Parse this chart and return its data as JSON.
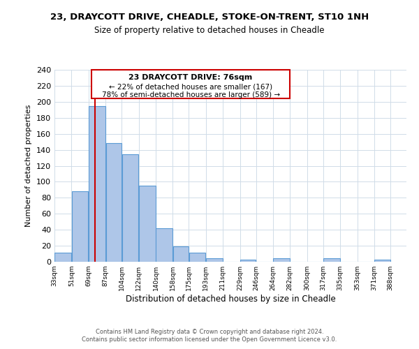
{
  "title": "23, DRAYCOTT DRIVE, CHEADLE, STOKE-ON-TRENT, ST10 1NH",
  "subtitle": "Size of property relative to detached houses in Cheadle",
  "xlabel": "Distribution of detached houses by size in Cheadle",
  "ylabel": "Number of detached properties",
  "bar_left_edges": [
    33,
    51,
    69,
    87,
    104,
    122,
    140,
    158,
    175,
    193,
    211,
    229,
    246,
    264,
    282,
    300,
    317,
    335,
    353,
    371
  ],
  "bar_heights": [
    11,
    88,
    195,
    148,
    134,
    95,
    42,
    19,
    11,
    4,
    0,
    3,
    0,
    4,
    0,
    0,
    4,
    0,
    0,
    3
  ],
  "bar_widths": [
    18,
    18,
    18,
    17,
    18,
    18,
    18,
    17,
    18,
    18,
    18,
    17,
    18,
    18,
    18,
    17,
    18,
    18,
    18,
    17
  ],
  "bar_color": "#aec6e8",
  "bar_edge_color": "#5b9bd5",
  "property_line_x": 76,
  "property_line_color": "#cc0000",
  "annotation_title": "23 DRAYCOTT DRIVE: 76sqm",
  "annotation_line1": "← 22% of detached houses are smaller (167)",
  "annotation_line2": "78% of semi-detached houses are larger (589) →",
  "annotation_box_color": "#ffffff",
  "annotation_box_edge_color": "#cc0000",
  "tick_labels": [
    "33sqm",
    "51sqm",
    "69sqm",
    "87sqm",
    "104sqm",
    "122sqm",
    "140sqm",
    "158sqm",
    "175sqm",
    "193sqm",
    "211sqm",
    "229sqm",
    "246sqm",
    "264sqm",
    "282sqm",
    "300sqm",
    "317sqm",
    "335sqm",
    "353sqm",
    "371sqm",
    "388sqm"
  ],
  "ylim": [
    0,
    240
  ],
  "yticks": [
    0,
    20,
    40,
    60,
    80,
    100,
    120,
    140,
    160,
    180,
    200,
    220,
    240
  ],
  "footer1": "Contains HM Land Registry data © Crown copyright and database right 2024.",
  "footer2": "Contains public sector information licensed under the Open Government Licence v3.0.",
  "bg_color": "#ffffff",
  "grid_color": "#d0dce8"
}
